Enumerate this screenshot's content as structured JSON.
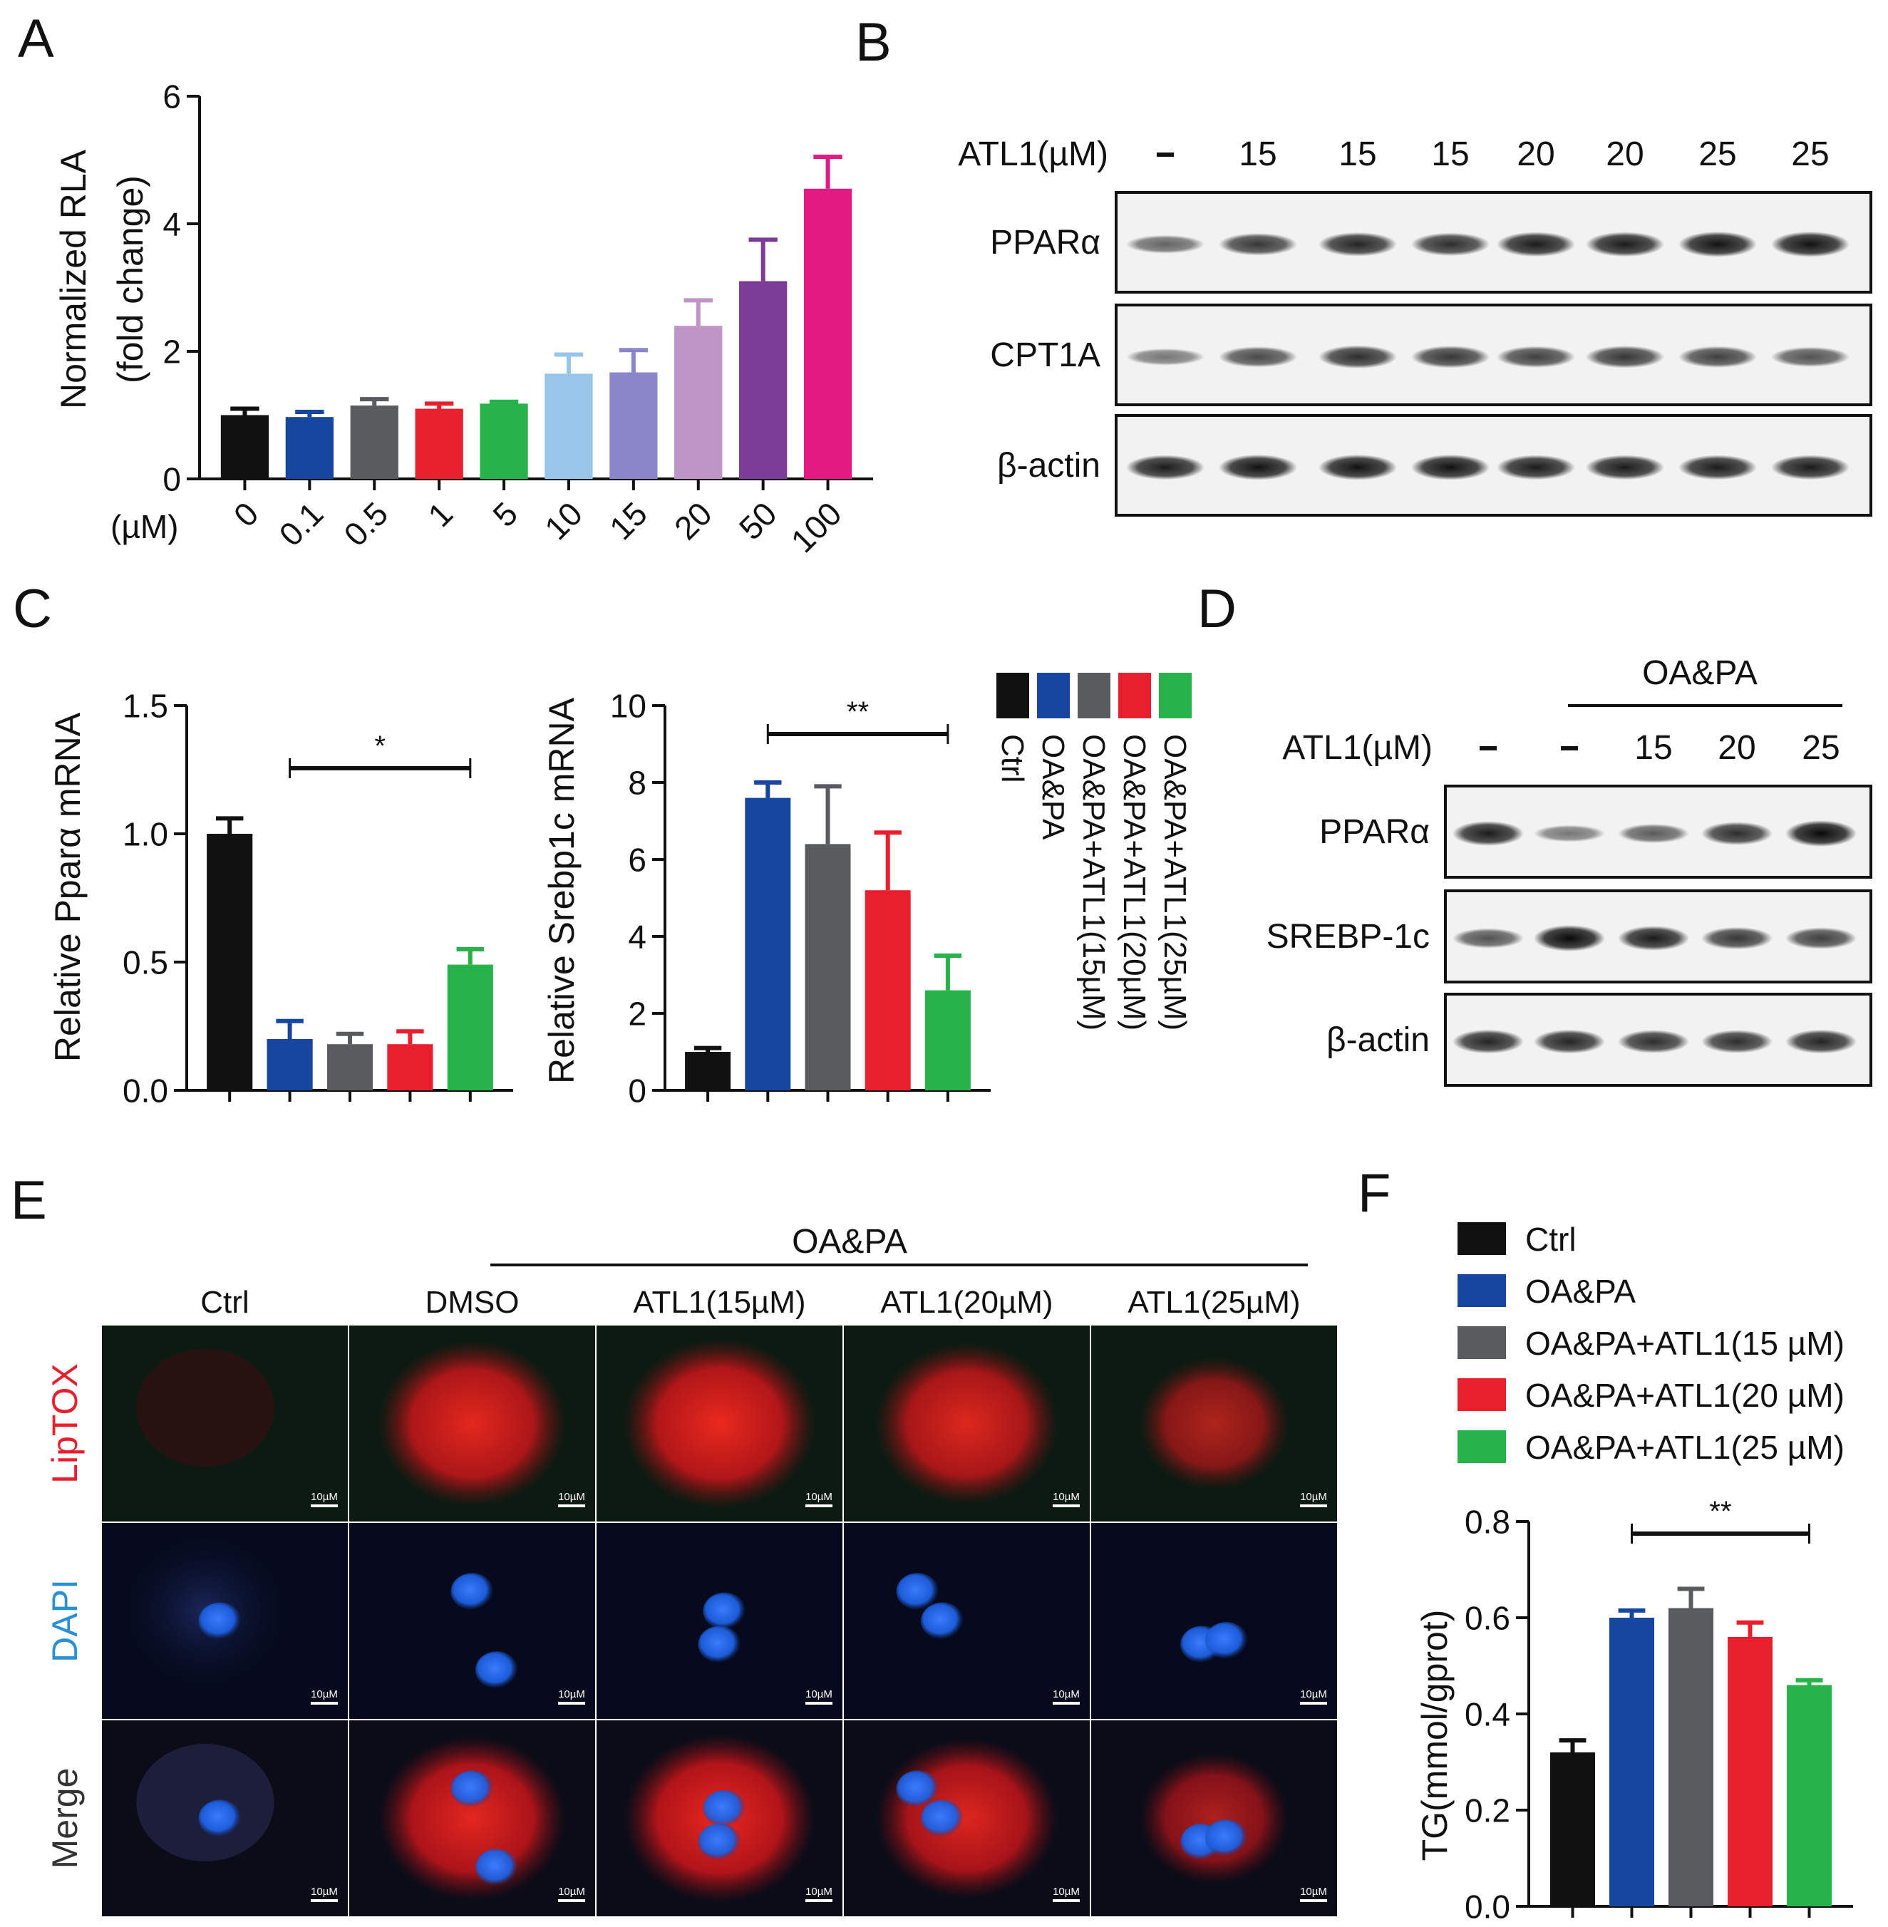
{
  "colors": {
    "black": "#111111",
    "blue": "#1646a0",
    "gray": "#5a5b5e",
    "red": "#e8202d",
    "green": "#27b24a",
    "lightblue": "#98c6ea",
    "periwinkle": "#8b86c9",
    "lilac": "#bf94c6",
    "purple": "#7a3c94",
    "magenta": "#e21b82"
  },
  "panel_letters": [
    "A",
    "B",
    "C",
    "D",
    "E",
    "F"
  ],
  "chart_data": [
    {
      "id": "A",
      "type": "bar",
      "ylabel_line1": "Normalized RLA",
      "ylabel_line2": "(fold change)",
      "xunit": "(µM)",
      "categories": [
        "0",
        "0.1",
        "0.5",
        "1",
        "5",
        "10",
        "15",
        "20",
        "50",
        "100"
      ],
      "values": [
        1.0,
        0.97,
        1.15,
        1.1,
        1.18,
        1.65,
        1.67,
        2.4,
        3.1,
        4.55
      ],
      "errors": [
        0.1,
        0.08,
        0.1,
        0.08,
        0.03,
        0.3,
        0.35,
        0.4,
        0.65,
        0.5
      ],
      "colors": [
        "black",
        "blue",
        "gray",
        "red",
        "green",
        "lightblue",
        "periwinkle",
        "lilac",
        "purple",
        "magenta"
      ],
      "yticks": [
        "0",
        "2",
        "4",
        "6"
      ],
      "ylim": [
        0,
        6
      ]
    },
    {
      "id": "C1",
      "type": "bar",
      "ylabel": "Relative Pparα mRNA",
      "categories": [
        "Ctrl",
        "OA&PA",
        "OA&PA+ATL1(15µM)",
        "OA&PA+ATL1(20µM)",
        "OA&PA+ATL1(25µM)"
      ],
      "values": [
        1.0,
        0.2,
        0.18,
        0.18,
        0.49
      ],
      "errors": [
        0.06,
        0.07,
        0.04,
        0.05,
        0.06
      ],
      "colors": [
        "black",
        "blue",
        "gray",
        "red",
        "green"
      ],
      "yticks": [
        "0.0",
        "0.5",
        "1.0",
        "1.5"
      ],
      "ylim": [
        0,
        1.5
      ],
      "significance": "*"
    },
    {
      "id": "C2",
      "type": "bar",
      "ylabel": "Relative Srebp1c mRNA",
      "categories": [
        "Ctrl",
        "OA&PA",
        "OA&PA+ATL1(15µM)",
        "OA&PA+ATL1(20µM)",
        "OA&PA+ATL1(25µM)"
      ],
      "values": [
        1.0,
        7.6,
        6.4,
        5.2,
        2.6
      ],
      "errors": [
        0.1,
        0.4,
        1.5,
        1.5,
        0.9
      ],
      "colors": [
        "black",
        "blue",
        "gray",
        "red",
        "green"
      ],
      "yticks": [
        "0",
        "2",
        "4",
        "6",
        "8",
        "10"
      ],
      "ylim": [
        0,
        10
      ],
      "significance": "**"
    },
    {
      "id": "F",
      "type": "bar",
      "ylabel": "TG(mmol/gprot)",
      "categories": [
        "Ctrl",
        "OA&PA",
        "OA&PA+ATL1(15µM)",
        "OA&PA+ATL1(20µM)",
        "OA&PA+ATL1(25µM)"
      ],
      "values": [
        0.32,
        0.6,
        0.62,
        0.56,
        0.46
      ],
      "errors": [
        0.025,
        0.015,
        0.04,
        0.03,
        0.01
      ],
      "colors": [
        "black",
        "blue",
        "gray",
        "red",
        "green"
      ],
      "yticks": [
        "0.0",
        "0.2",
        "0.4",
        "0.6",
        "0.8"
      ],
      "ylim": [
        0,
        0.8
      ],
      "significance": "**"
    }
  ],
  "legend_C": [
    "Ctrl",
    "OA&PA",
    "OA&PA+ATL1(15µM)",
    "OA&PA+ATL1(20µM)",
    "OA&PA+ATL1(25µM)"
  ],
  "legend_F": [
    "Ctrl",
    "OA&PA",
    "OA&PA+ATL1(15 µM)",
    "OA&PA+ATL1(20 µM)",
    "OA&PA+ATL1(25 µM)"
  ],
  "blot_B": {
    "header_label": "ATL1(µM)",
    "lanes": [
      "-",
      "15",
      "15",
      "15",
      "20",
      "20",
      "25",
      "25"
    ],
    "rows": [
      {
        "label": "PPARα",
        "intensity": [
          0.45,
          0.7,
          0.8,
          0.75,
          0.85,
          0.85,
          0.9,
          0.9
        ]
      },
      {
        "label": "CPT1A",
        "intensity": [
          0.35,
          0.6,
          0.75,
          0.7,
          0.65,
          0.7,
          0.65,
          0.55
        ]
      },
      {
        "label": "β-actin",
        "intensity": [
          0.85,
          0.9,
          0.9,
          0.9,
          0.85,
          0.85,
          0.85,
          0.85
        ]
      }
    ]
  },
  "blot_D": {
    "group_label": "OA&PA",
    "header_label": "ATL1(µM)",
    "lanes": [
      "-",
      "-",
      "15",
      "20",
      "25"
    ],
    "rows": [
      {
        "label": "PPARα",
        "intensity": [
          0.85,
          0.35,
          0.5,
          0.75,
          0.95
        ]
      },
      {
        "label": "SREBP-1c",
        "intensity": [
          0.55,
          0.95,
          0.85,
          0.7,
          0.65
        ]
      },
      {
        "label": "β-actin",
        "intensity": [
          0.8,
          0.8,
          0.75,
          0.75,
          0.8
        ]
      }
    ]
  },
  "panel_E": {
    "group_label": "OA&PA",
    "columns": [
      "Ctrl",
      "DMSO",
      "ATL1(15µM)",
      "ATL1(20µM)",
      "ATL1(25µM)"
    ],
    "rows": [
      "LipTOX",
      "DAPI",
      "Merge"
    ],
    "row_colors": [
      "#e8202d",
      "#2b8fd6",
      "#333333"
    ],
    "scale_bar": "10µM",
    "lipid_levels": [
      0.05,
      0.8,
      0.85,
      0.75,
      0.4
    ]
  }
}
